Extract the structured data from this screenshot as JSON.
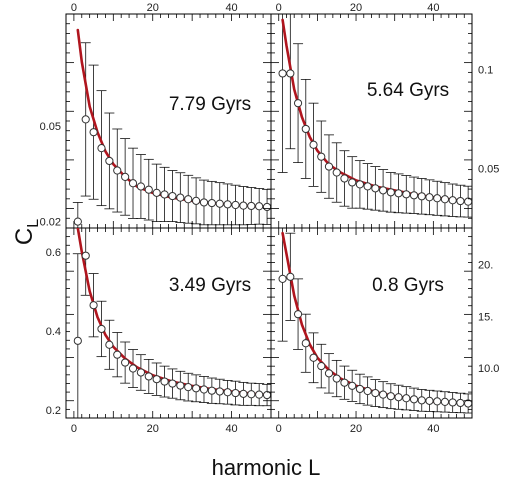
{
  "figure": {
    "xlabel": "harmonic L",
    "ylabel_main": "C",
    "ylabel_sub": "L"
  },
  "chart_data": [
    {
      "type": "scatter",
      "title": "7.79 Gyrs",
      "x_ticks": [
        0,
        20,
        40
      ],
      "y_ticks": [
        "0.05",
        "0.02"
      ],
      "xlim": [
        -2,
        50
      ],
      "ylim": [
        0.018,
        0.085
      ],
      "series": [
        {
          "x": [
            1,
            3,
            5,
            7,
            9,
            11,
            13,
            15,
            17,
            19,
            21,
            23,
            25,
            27,
            29,
            31,
            33,
            35,
            37,
            39,
            41,
            43,
            45,
            47,
            49
          ],
          "y": [
            0.02,
            0.052,
            0.048,
            0.043,
            0.039,
            0.036,
            0.034,
            0.032,
            0.031,
            0.03,
            0.029,
            0.0285,
            0.028,
            0.0275,
            0.027,
            0.0265,
            0.026,
            0.0258,
            0.0256,
            0.0254,
            0.0252,
            0.025,
            0.0249,
            0.0248,
            0.0246
          ],
          "err": [
            0.006,
            0.024,
            0.021,
            0.018,
            0.015,
            0.013,
            0.012,
            0.011,
            0.01,
            0.0095,
            0.009,
            0.0085,
            0.008,
            0.0078,
            0.0075,
            0.0072,
            0.007,
            0.0068,
            0.0066,
            0.0064,
            0.0062,
            0.006,
            0.0058,
            0.0056,
            0.0055
          ]
        }
      ],
      "fit": {
        "x": [
          1,
          2,
          4,
          6,
          8,
          10,
          13,
          16,
          20,
          25,
          30,
          35,
          40,
          45,
          49
        ],
        "y": [
          0.08,
          0.07,
          0.056,
          0.048,
          0.042,
          0.038,
          0.034,
          0.031,
          0.029,
          0.0275,
          0.0265,
          0.0258,
          0.0253,
          0.0249,
          0.0246
        ]
      }
    },
    {
      "type": "scatter",
      "title": "5.64 Gyrs",
      "x_ticks": [
        0,
        20,
        40
      ],
      "y_ticks": [
        "0.1",
        "0.05"
      ],
      "xlim": [
        -2,
        50
      ],
      "ylim": [
        0.02,
        0.128
      ],
      "series": [
        {
          "x": [
            1,
            3,
            5,
            7,
            9,
            11,
            13,
            15,
            17,
            19,
            21,
            23,
            25,
            27,
            29,
            31,
            33,
            35,
            37,
            39,
            41,
            43,
            45,
            47,
            49
          ],
          "y": [
            0.098,
            0.098,
            0.083,
            0.07,
            0.062,
            0.056,
            0.051,
            0.048,
            0.045,
            0.043,
            0.042,
            0.041,
            0.04,
            0.039,
            0.038,
            0.0375,
            0.037,
            0.0365,
            0.036,
            0.0355,
            0.035,
            0.0345,
            0.034,
            0.0336,
            0.0333
          ],
          "err": [
            0.05,
            0.038,
            0.03,
            0.025,
            0.021,
            0.018,
            0.016,
            0.015,
            0.014,
            0.013,
            0.012,
            0.0115,
            0.011,
            0.0105,
            0.01,
            0.0098,
            0.0095,
            0.0092,
            0.009,
            0.0088,
            0.0086,
            0.0084,
            0.0082,
            0.008,
            0.0078
          ]
        }
      ],
      "fit": {
        "x": [
          1,
          2,
          4,
          6,
          8,
          10,
          13,
          16,
          20,
          25,
          30,
          35,
          40,
          45,
          49
        ],
        "y": [
          0.125,
          0.112,
          0.09,
          0.076,
          0.066,
          0.059,
          0.052,
          0.048,
          0.044,
          0.041,
          0.039,
          0.037,
          0.0355,
          0.0343,
          0.0333
        ]
      }
    },
    {
      "type": "scatter",
      "title": "3.49 Gyrs",
      "x_ticks": [
        0,
        20,
        40
      ],
      "y_ticks": [
        "0.6",
        "0.4",
        "0.2"
      ],
      "xlim": [
        -2,
        50
      ],
      "ylim": [
        0.18,
        0.66
      ],
      "series": [
        {
          "x": [
            1,
            3,
            5,
            7,
            9,
            11,
            13,
            15,
            17,
            19,
            21,
            23,
            25,
            27,
            29,
            31,
            33,
            35,
            37,
            39,
            41,
            43,
            45,
            47,
            49
          ],
          "y": [
            0.375,
            0.59,
            0.465,
            0.405,
            0.365,
            0.34,
            0.32,
            0.305,
            0.295,
            0.285,
            0.278,
            0.272,
            0.267,
            0.262,
            0.258,
            0.255,
            0.252,
            0.249,
            0.247,
            0.245,
            0.243,
            0.241,
            0.24,
            0.239,
            0.238
          ],
          "err": [
            0.22,
            0.1,
            0.08,
            0.07,
            0.062,
            0.056,
            0.052,
            0.048,
            0.045,
            0.043,
            0.041,
            0.039,
            0.037,
            0.036,
            0.035,
            0.034,
            0.033,
            0.032,
            0.031,
            0.03,
            0.03,
            0.029,
            0.028,
            0.028,
            0.027
          ]
        }
      ],
      "fit": {
        "x": [
          1,
          2,
          4,
          6,
          8,
          10,
          13,
          16,
          20,
          25,
          30,
          35,
          40,
          45,
          49
        ],
        "y": [
          0.66,
          0.6,
          0.5,
          0.435,
          0.39,
          0.36,
          0.33,
          0.308,
          0.288,
          0.272,
          0.261,
          0.253,
          0.247,
          0.242,
          0.238
        ]
      }
    },
    {
      "type": "scatter",
      "title": "0.8 Gyrs",
      "x_ticks": [
        0,
        20,
        40
      ],
      "y_ticks": [
        "20.",
        "15.",
        "10.0"
      ],
      "xlim": [
        -2,
        50
      ],
      "ylim": [
        5.2,
        23.5
      ],
      "series": [
        {
          "x": [
            1,
            3,
            5,
            7,
            9,
            11,
            13,
            15,
            17,
            19,
            21,
            23,
            25,
            27,
            29,
            31,
            33,
            35,
            37,
            39,
            41,
            43,
            45,
            47,
            49
          ],
          "y": [
            18.6,
            18.8,
            15.2,
            12.4,
            11.0,
            10.2,
            9.5,
            9.0,
            8.6,
            8.3,
            8.0,
            7.8,
            7.6,
            7.45,
            7.3,
            7.2,
            7.1,
            7.0,
            6.9,
            6.85,
            6.8,
            6.75,
            6.7,
            6.65,
            6.6
          ],
          "err": [
            6.0,
            4.2,
            3.4,
            2.8,
            2.4,
            2.1,
            1.9,
            1.75,
            1.6,
            1.5,
            1.42,
            1.36,
            1.3,
            1.25,
            1.2,
            1.16,
            1.12,
            1.08,
            1.05,
            1.02,
            1.0,
            0.98,
            0.96,
            0.94,
            0.92
          ]
        }
      ],
      "fit": {
        "x": [
          1,
          2,
          4,
          6,
          8,
          10,
          13,
          16,
          20,
          25,
          30,
          35,
          40,
          45,
          49
        ],
        "y": [
          23.0,
          21.0,
          17.0,
          14.2,
          12.3,
          11.0,
          9.8,
          9.0,
          8.3,
          7.7,
          7.3,
          7.0,
          6.8,
          6.7,
          6.6
        ]
      }
    }
  ],
  "colors": {
    "fit_line": "#b0151e",
    "point_fill": "#ffffff",
    "point_stroke": "#333333",
    "error_bar": "#111111",
    "frame": "#000000"
  }
}
